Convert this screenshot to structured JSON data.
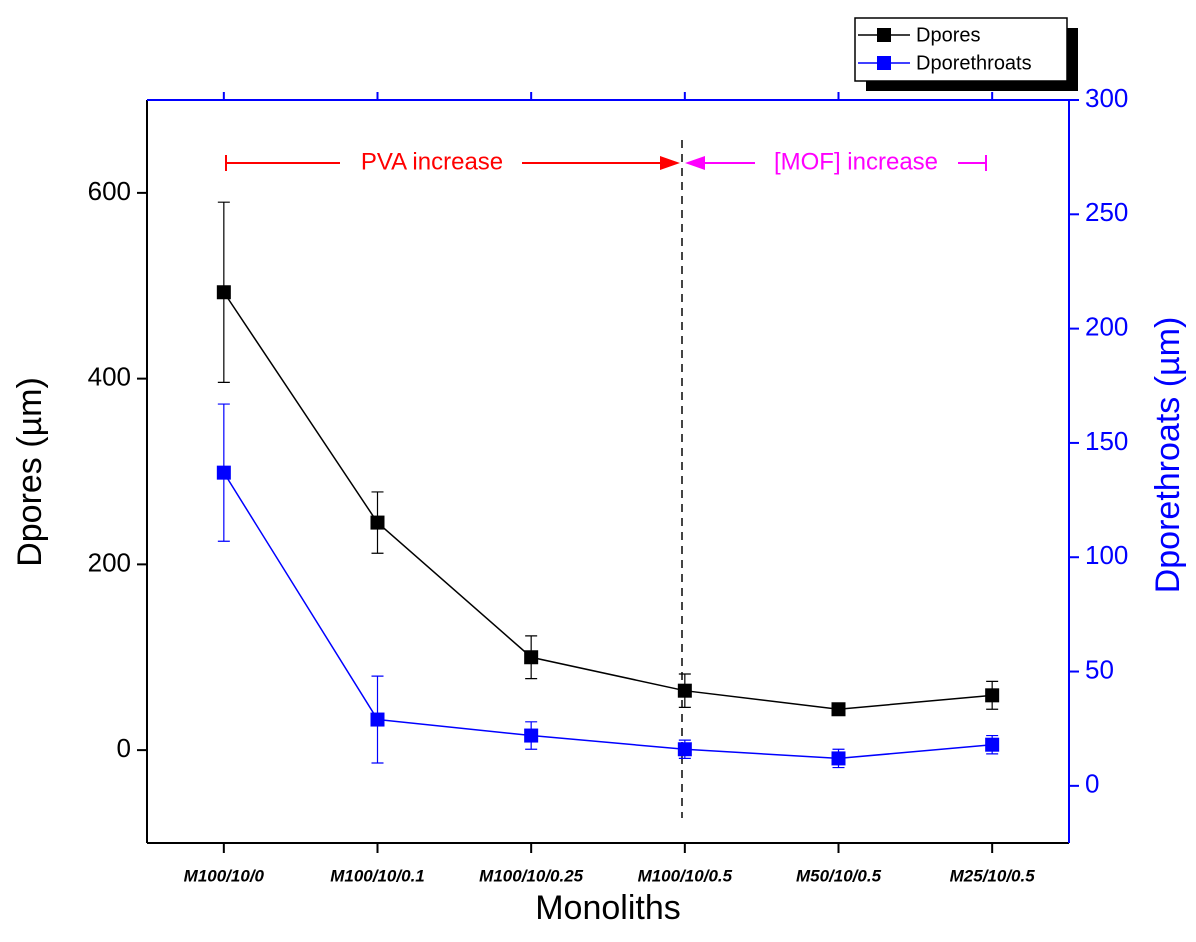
{
  "chart_data": {
    "type": "line",
    "x_label": "Monoliths",
    "y_label": "Dpores (µm)",
    "y2_label": "Dporethroats (µm)",
    "categories": [
      "M100/10/0",
      "M100/10/0.1",
      "M100/10/0.25",
      "M100/10/0.5",
      "M50/10/0.5",
      "M25/10/0.5"
    ],
    "series": [
      {
        "name": "Dpores",
        "color": "#000000",
        "values": [
          493,
          245,
          100,
          64,
          44,
          59
        ],
        "errors": [
          97,
          33,
          23,
          18,
          4,
          15
        ]
      },
      {
        "name": "Dporethroats",
        "color": "#0000ff",
        "axis": "y2",
        "values": [
          137,
          29,
          22,
          16,
          12,
          18
        ],
        "errors": [
          30,
          19,
          6,
          4,
          4,
          4
        ]
      }
    ],
    "ylim": [
      -100,
      700
    ],
    "yticks": [
      0,
      200,
      400,
      600
    ],
    "y2lim": [
      -25,
      300
    ],
    "y2ticks": [
      0,
      50,
      100,
      150,
      200,
      250,
      300
    ],
    "y2color": "#0000ff",
    "annotations": [
      {
        "text": "PVA increase",
        "color": "#ff0000"
      },
      {
        "text": "[MOF] increase",
        "color": "#ff00ff"
      }
    ]
  }
}
